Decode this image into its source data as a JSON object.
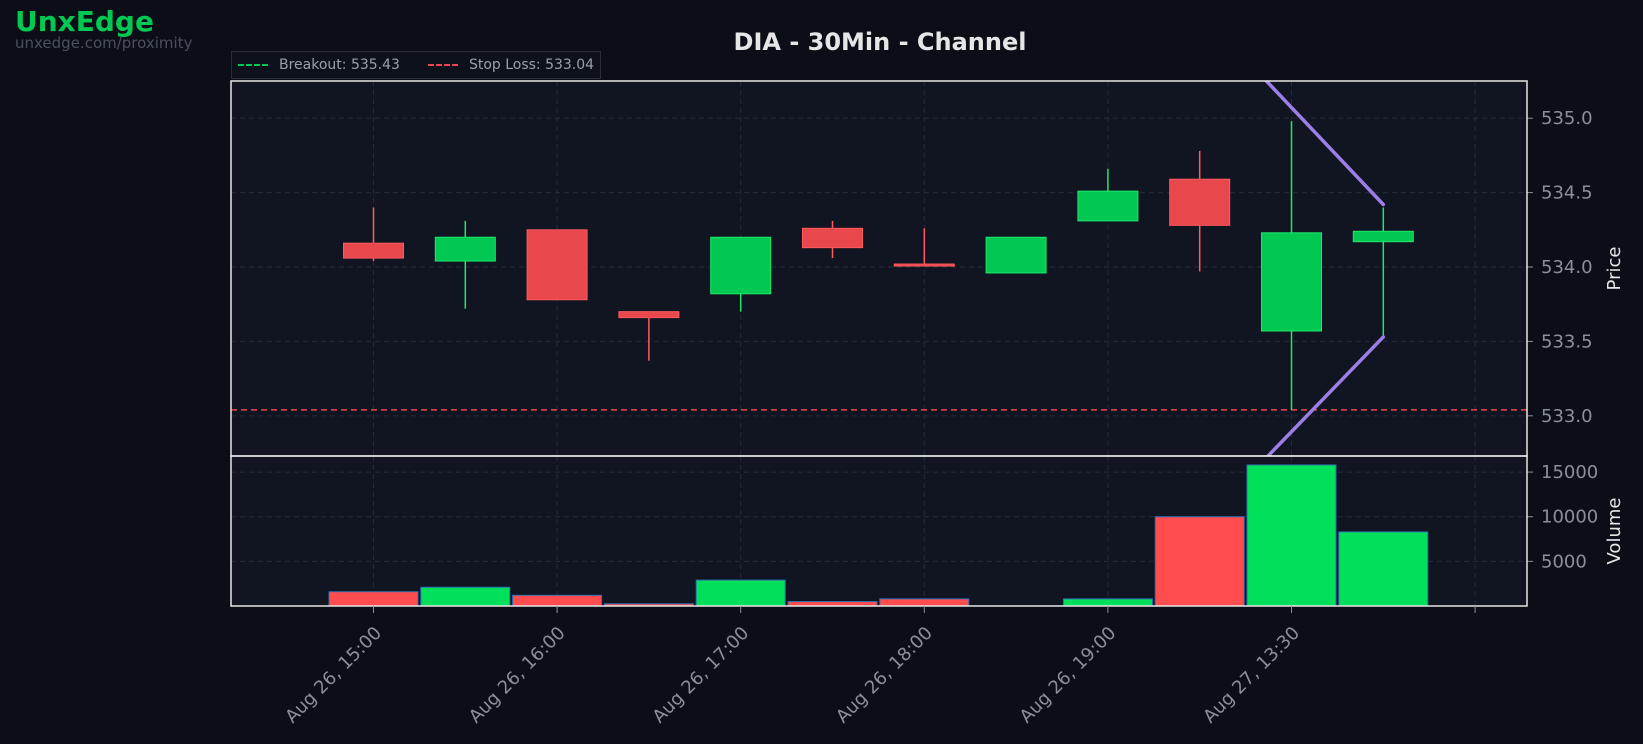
{
  "brand": {
    "name": "UnxEdge",
    "url": "unxedge.com/proximity"
  },
  "colors": {
    "background": "#0b0e17",
    "plot_background": "#111421",
    "up": "#00c853",
    "down": "#e8474c",
    "volume_up": "#00e05a",
    "volume_down": "#ff4d4f",
    "breakout": "#00c853",
    "stop_loss": "#e8474c",
    "channel": "#9b7fe6"
  },
  "chart_data": {
    "type": "candlestick",
    "title": "DIA - 30Min - Channel",
    "legend": {
      "placement": "top-left",
      "items": [
        {
          "label": "Breakout: 535.43",
          "style": "dashed",
          "color": "#00c853"
        },
        {
          "label": "Stop Loss: 533.04",
          "style": "dashed",
          "color": "#e8474c"
        }
      ]
    },
    "x_tick_labels": [
      "Aug 26, 15:00",
      "Aug 26, 16:00",
      "Aug 26, 17:00",
      "Aug 26, 18:00",
      "Aug 26, 19:00",
      "Aug 27, 13:30"
    ],
    "grid": true,
    "price_axis": {
      "label": "Price",
      "ticks": [
        533.0,
        533.5,
        534.0,
        534.5,
        535.0
      ],
      "range": [
        532.73,
        535.25
      ]
    },
    "volume_axis": {
      "label": "Volume",
      "ticks": [
        5000,
        10000,
        15000
      ],
      "range": [
        0,
        16800
      ]
    },
    "candles": [
      {
        "open": 534.16,
        "high": 534.4,
        "low": 534.04,
        "close": 534.06,
        "volume": 1600
      },
      {
        "open": 534.04,
        "high": 534.31,
        "low": 533.72,
        "close": 534.2,
        "volume": 2100
      },
      {
        "open": 534.25,
        "high": 534.25,
        "low": 533.78,
        "close": 533.78,
        "volume": 1200
      },
      {
        "open": 533.7,
        "high": 533.7,
        "low": 533.37,
        "close": 533.66,
        "volume": 250
      },
      {
        "open": 533.82,
        "high": 534.2,
        "low": 533.7,
        "close": 534.2,
        "volume": 2900
      },
      {
        "open": 534.26,
        "high": 534.31,
        "low": 534.06,
        "close": 534.13,
        "volume": 500
      },
      {
        "open": 534.02,
        "high": 534.26,
        "low": 534.01,
        "close": 534.01,
        "volume": 800
      },
      {
        "open": 533.96,
        "high": 534.2,
        "low": 533.96,
        "close": 534.2,
        "volume": 0
      },
      {
        "open": 534.31,
        "high": 534.66,
        "low": 534.31,
        "close": 534.51,
        "volume": 800
      },
      {
        "open": 534.59,
        "high": 534.78,
        "low": 533.97,
        "close": 534.28,
        "volume": 10000
      },
      {
        "open": 533.57,
        "high": 534.98,
        "low": 533.04,
        "close": 534.23,
        "volume": 15800
      },
      {
        "open": 534.17,
        "high": 534.4,
        "low": 533.53,
        "close": 534.24,
        "volume": 8300
      }
    ],
    "breakout": 535.43,
    "stop_loss": 533.04,
    "channel": {
      "upper": [
        [
          9.65,
          535.3
        ],
        [
          11.0,
          534.42
        ]
      ],
      "lower": [
        [
          9.65,
          532.67
        ],
        [
          11.0,
          533.53
        ]
      ]
    }
  }
}
